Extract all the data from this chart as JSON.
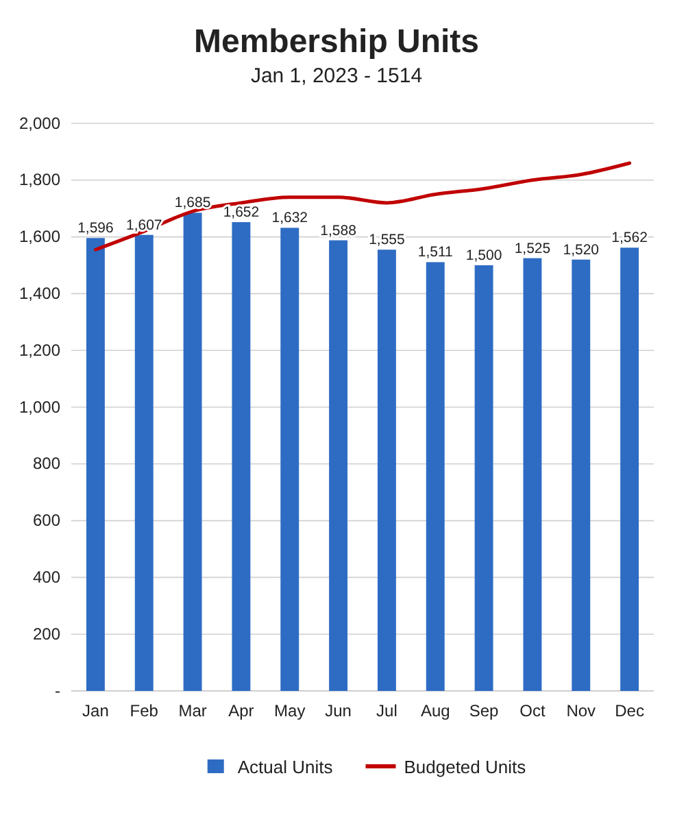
{
  "chart_data": {
    "type": "bar",
    "title": "Membership Units",
    "subtitle": "Jan 1, 2023 - 1514",
    "categories": [
      "Jan",
      "Feb",
      "Mar",
      "Apr",
      "May",
      "Jun",
      "Jul",
      "Aug",
      "Sep",
      "Oct",
      "Nov",
      "Dec"
    ],
    "series": [
      {
        "name": "Actual Units",
        "color": "#2e6cc4",
        "values": [
          1596,
          1607,
          1685,
          1652,
          1632,
          1588,
          1555,
          1511,
          1500,
          1525,
          1520,
          1562
        ],
        "value_labels": [
          "1,596",
          "1,607",
          "1,685",
          "1,652",
          "1,632",
          "1,588",
          "1,555",
          "1,511",
          "1,500",
          "1,525",
          "1,520",
          "1,562"
        ]
      },
      {
        "name": "Budgeted Units",
        "type": "line",
        "color": "#c00000",
        "values": [
          1555,
          1620,
          1690,
          1720,
          1740,
          1740,
          1720,
          1750,
          1770,
          1800,
          1820,
          1860
        ]
      }
    ],
    "ylim": [
      0,
      2000
    ],
    "yticks": [
      {
        "value": 0,
        "label": "-"
      },
      {
        "value": 200,
        "label": "200"
      },
      {
        "value": 400,
        "label": "400"
      },
      {
        "value": 600,
        "label": "600"
      },
      {
        "value": 800,
        "label": "800"
      },
      {
        "value": 1000,
        "label": "1,000"
      },
      {
        "value": 1200,
        "label": "1,200"
      },
      {
        "value": 1400,
        "label": "1,400"
      },
      {
        "value": 1600,
        "label": "1,600"
      },
      {
        "value": 1800,
        "label": "1,800"
      },
      {
        "value": 2000,
        "label": "2,000"
      }
    ],
    "grid": "y",
    "legend": "bottom"
  }
}
